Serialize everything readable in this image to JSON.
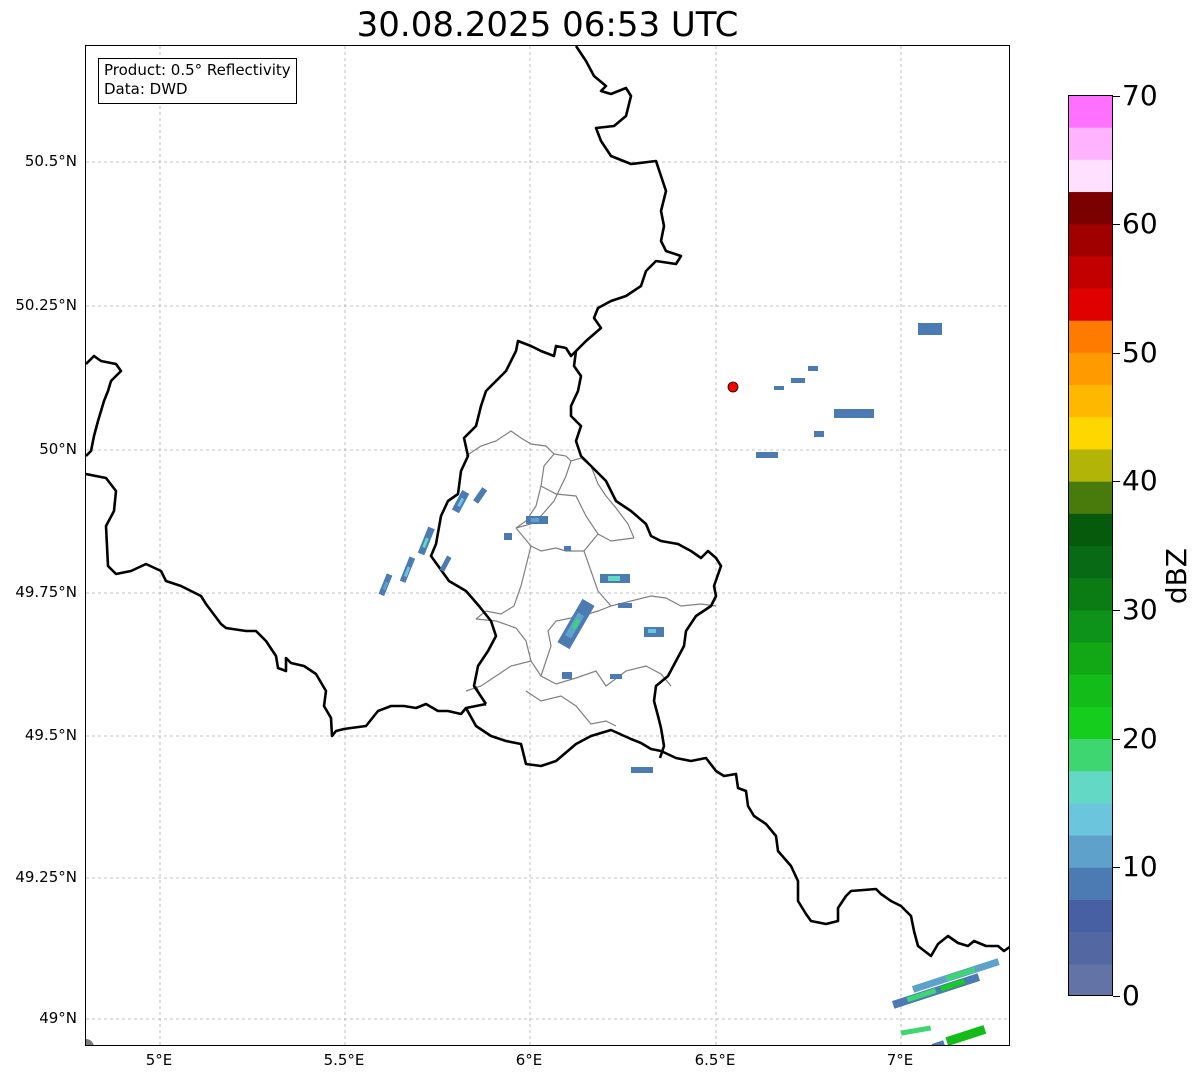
{
  "title": "30.08.2025 06:53 UTC",
  "info_box": {
    "product": "Product: 0.5° Reflectivity",
    "data": "Data: DWD"
  },
  "latitude_labels": [
    "50.5°N",
    "50.25°N",
    "50°N",
    "49.75°N",
    "49.5°N",
    "49.25°N",
    "49°N"
  ],
  "longitude_labels": [
    "5°E",
    "5.5°E",
    "6°E",
    "6.5°E",
    "7°E"
  ],
  "colorbar": {
    "label": "dBZ",
    "ticks": [
      "0",
      "10",
      "20",
      "30",
      "40",
      "50",
      "60",
      "70"
    ],
    "min": 0,
    "max": 70,
    "step": 2.5,
    "colors": [
      "#6473a5",
      "#5367a3",
      "#4660a3",
      "#4c7bb4",
      "#5ea1cb",
      "#6bc5dc",
      "#63d9c5",
      "#3dd671",
      "#15cd1c",
      "#13bc18",
      "#12a815",
      "#0d921a",
      "#0b7c14",
      "#096a15",
      "#065a0c",
      "#497a0c",
      "#b2b407",
      "#ffd700",
      "#ffb800",
      "#ff9a00",
      "#ff7b00",
      "#e10000",
      "#c20000",
      "#a00000",
      "#7b0000",
      "#ffe0ff",
      "#ffb3ff",
      "#ff70ff",
      "#ee36ee"
    ]
  },
  "radar_site": {
    "color": "#ff0000"
  },
  "colors": {
    "national_border": "#000000",
    "district_border": "#808080",
    "gridline": "#b0b0b0"
  }
}
